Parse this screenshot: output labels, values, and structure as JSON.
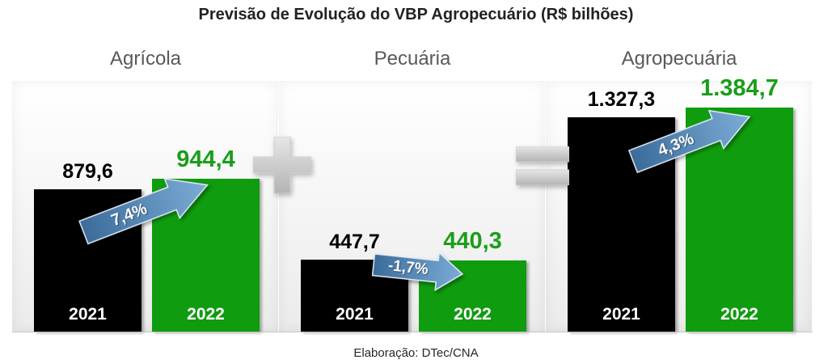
{
  "title": "Previsão de Evolução do VBP Agropecuário (R$ bilhões)",
  "footer": "Elaboração: DTec/CNA",
  "operators": [
    "plus-sign-icon",
    "equals-sign-icon"
  ],
  "colors": {
    "bar_2021": "#000000",
    "bar_2022": "#0f9c0f",
    "value_2021": "#000000",
    "value_2022": "#1a9e1a",
    "year_label": "#ffffff",
    "panel_title": "#595959",
    "arrow_dark": "#3b6b9a",
    "arrow_light": "#7cadd7"
  },
  "chart_data": [
    {
      "type": "bar",
      "title": "Agrícola",
      "categories": [
        "2021",
        "2022"
      ],
      "values": [
        879.6,
        944.4
      ],
      "value_labels": [
        "879,6",
        "944,4"
      ],
      "change_pct": 7.4,
      "change_label": "7,4%"
    },
    {
      "type": "bar",
      "title": "Pecuária",
      "categories": [
        "2021",
        "2022"
      ],
      "values": [
        447.7,
        440.3
      ],
      "value_labels": [
        "447,7",
        "440,3"
      ],
      "change_pct": -1.7,
      "change_label": "-1,7%"
    },
    {
      "type": "bar",
      "title": "Agropecuária",
      "categories": [
        "2021",
        "2022"
      ],
      "values": [
        1327.3,
        1384.7
      ],
      "value_labels": [
        "1.327,3",
        "1.384,7"
      ],
      "change_pct": 4.3,
      "change_label": "4,3%"
    }
  ]
}
